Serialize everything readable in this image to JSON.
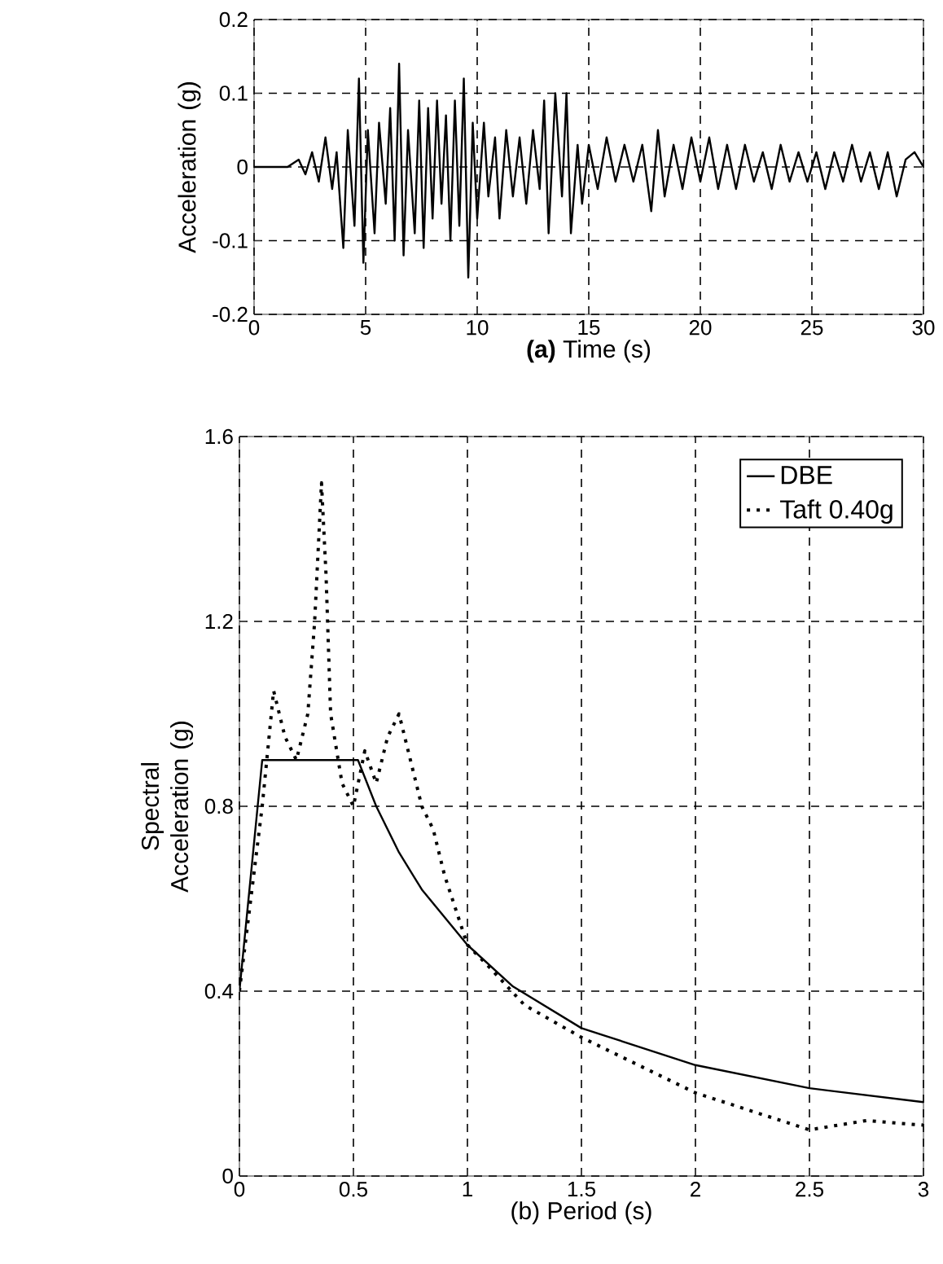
{
  "chart_data": [
    {
      "type": "line",
      "xlabel": "**(a)** Time (s)",
      "ylabel": "Acceleration (g)",
      "xlim": [
        0,
        30
      ],
      "ylim": [
        -0.2,
        0.2
      ],
      "xticks": [
        0,
        5,
        10,
        15,
        20,
        25,
        30
      ],
      "yticks": [
        -0.2,
        -0.1,
        0,
        0.1,
        0.2
      ],
      "grid": true,
      "marker": "none",
      "series": [
        {
          "color": "#000000",
          "line_style": "solid",
          "x": [
            0,
            1.5,
            2,
            2.3,
            2.6,
            2.9,
            3.2,
            3.5,
            3.7,
            4.0,
            4.2,
            4.5,
            4.7,
            4.9,
            5.1,
            5.4,
            5.6,
            5.9,
            6.1,
            6.3,
            6.5,
            6.7,
            6.9,
            7.2,
            7.4,
            7.6,
            7.8,
            8.0,
            8.2,
            8.4,
            8.6,
            8.8,
            9.0,
            9.2,
            9.4,
            9.6,
            9.8,
            10.0,
            10.3,
            10.5,
            10.8,
            11.0,
            11.3,
            11.6,
            11.9,
            12.2,
            12.5,
            12.8,
            13.0,
            13.2,
            13.5,
            13.8,
            14.0,
            14.2,
            14.5,
            14.7,
            15.0,
            15.4,
            15.8,
            16.2,
            16.6,
            17.0,
            17.4,
            17.8,
            18.1,
            18.4,
            18.8,
            19.2,
            19.6,
            20.0,
            20.4,
            20.8,
            21.2,
            21.6,
            22.0,
            22.4,
            22.8,
            23.2,
            23.6,
            24.0,
            24.4,
            24.8,
            25.2,
            25.6,
            26.0,
            26.4,
            26.8,
            27.2,
            27.6,
            28.0,
            28.4,
            28.8,
            29.2,
            29.6,
            30
          ],
          "values": [
            0,
            0,
            0.01,
            -0.01,
            0.02,
            -0.02,
            0.04,
            -0.03,
            0.02,
            -0.11,
            0.05,
            -0.08,
            0.12,
            -0.13,
            0.05,
            -0.09,
            0.06,
            -0.05,
            0.08,
            -0.1,
            0.14,
            -0.12,
            0.05,
            -0.09,
            0.09,
            -0.11,
            0.08,
            -0.07,
            0.09,
            -0.05,
            0.07,
            -0.1,
            0.09,
            -0.08,
            0.12,
            -0.15,
            0.06,
            -0.07,
            0.06,
            -0.04,
            0.04,
            -0.07,
            0.05,
            -0.04,
            0.04,
            -0.05,
            0.05,
            -0.03,
            0.09,
            -0.09,
            0.1,
            -0.04,
            0.1,
            -0.09,
            0.03,
            -0.05,
            0.03,
            -0.03,
            0.04,
            -0.02,
            0.03,
            -0.02,
            0.03,
            -0.06,
            0.05,
            -0.04,
            0.03,
            -0.03,
            0.04,
            -0.02,
            0.04,
            -0.03,
            0.03,
            -0.03,
            0.03,
            -0.02,
            0.02,
            -0.03,
            0.03,
            -0.02,
            0.02,
            -0.02,
            0.02,
            -0.03,
            0.02,
            -0.02,
            0.03,
            -0.02,
            0.02,
            -0.03,
            0.02,
            -0.04,
            0.01,
            0.02,
            0
          ]
        }
      ]
    },
    {
      "type": "line",
      "xlabel": "(b) Period (s)",
      "ylabel": "Spectral Acceleration (g)",
      "xlim": [
        0,
        3
      ],
      "ylim": [
        0,
        1.6
      ],
      "xticks": [
        0,
        0.5,
        1,
        1.5,
        2,
        2.5,
        3
      ],
      "yticks": [
        0,
        0.4,
        0.8,
        1.2,
        1.6
      ],
      "grid": true,
      "legend": "top right",
      "marker": "none",
      "series": [
        {
          "name": "DBE",
          "color": "#000000",
          "line_style": "solid",
          "x": [
            0,
            0.1,
            0.52,
            0.6,
            0.7,
            0.8,
            1.0,
            1.2,
            1.5,
            2.0,
            2.5,
            3.0
          ],
          "values": [
            0.4,
            0.9,
            0.9,
            0.8,
            0.7,
            0.62,
            0.5,
            0.41,
            0.32,
            0.24,
            0.19,
            0.16
          ]
        },
        {
          "name": "Taft 0.40g",
          "color": "#000000",
          "line_style": "dotted",
          "x": [
            0,
            0.05,
            0.1,
            0.13,
            0.15,
            0.2,
            0.25,
            0.3,
            0.33,
            0.36,
            0.38,
            0.4,
            0.45,
            0.5,
            0.55,
            0.6,
            0.65,
            0.7,
            0.75,
            0.8,
            0.85,
            0.9,
            1.0,
            1.1,
            1.25,
            1.5,
            1.75,
            2.0,
            2.25,
            2.5,
            2.75,
            3.0
          ],
          "values": [
            0.4,
            0.6,
            0.8,
            0.95,
            1.05,
            0.95,
            0.9,
            1.0,
            1.2,
            1.5,
            1.3,
            1.0,
            0.85,
            0.8,
            0.92,
            0.85,
            0.95,
            1.0,
            0.9,
            0.8,
            0.75,
            0.65,
            0.5,
            0.45,
            0.37,
            0.3,
            0.24,
            0.18,
            0.14,
            0.1,
            0.12,
            0.11
          ]
        }
      ]
    }
  ]
}
